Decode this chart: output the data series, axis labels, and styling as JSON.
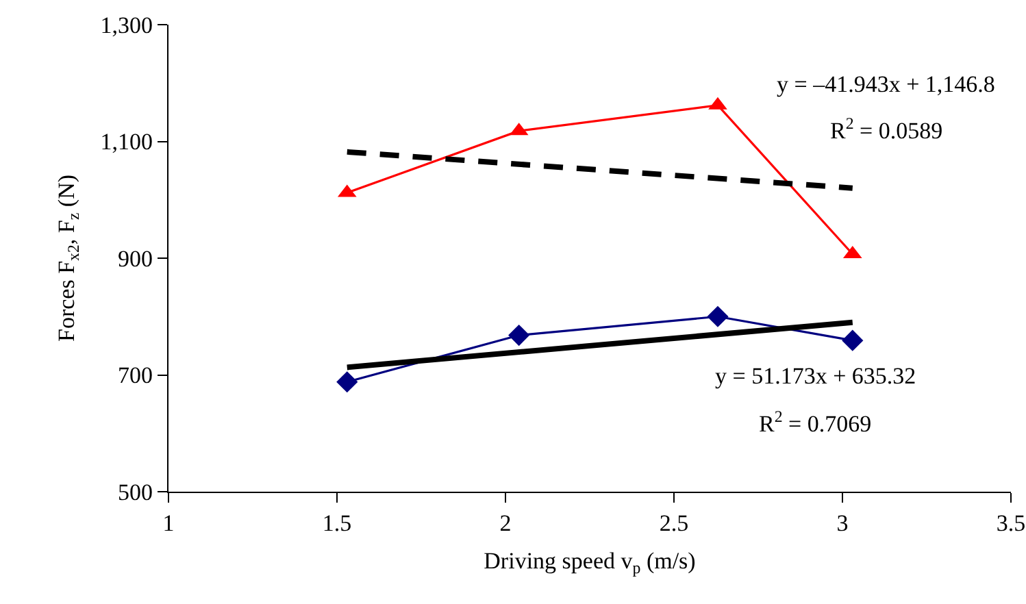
{
  "chart_data": {
    "type": "line",
    "xlabel": "Driving speed v$_{p}$ (m/s)",
    "ylabel": "Forces F$_{x2}$, F$_{z}$ (N)",
    "xlim": [
      1,
      3.5
    ],
    "xticks": [
      1,
      1.5,
      2,
      2.5,
      3,
      3.5
    ],
    "ylim": [
      500,
      1300
    ],
    "yticks": [
      500,
      700,
      900,
      {
        "value": 1100,
        "label": "1,100"
      },
      {
        "value": 1300,
        "label": "1,300"
      }
    ],
    "grid": false,
    "series": [
      {
        "x": [
          1.53,
          2.04,
          2.63,
          3.03
        ],
        "values": [
          1012,
          1118,
          1162,
          907
        ],
        "color": "#ff0000",
        "marker": "triangle",
        "line_style": "solid"
      },
      {
        "x": [
          1.53,
          2.04,
          2.63,
          3.03
        ],
        "values": [
          688,
          768,
          800,
          759
        ],
        "color": "#000080",
        "marker": "diamond",
        "line_style": "solid"
      },
      {
        "x": [
          1.53,
          3.03
        ],
        "values": [
          1082,
          1020
        ],
        "color": "#000000",
        "marker": "none",
        "line_style": "dashed"
      },
      {
        "x": [
          1.53,
          3.03
        ],
        "values": [
          713,
          790
        ],
        "color": "#000000",
        "marker": "none",
        "line_style": "solid"
      }
    ],
    "annotations": [
      "y = –41.943x + 1,146.8",
      "R$^{2}$ = 0.0589",
      "y = 51.173x + 635.32",
      "R$^{2}$ = 0.7069"
    ]
  }
}
